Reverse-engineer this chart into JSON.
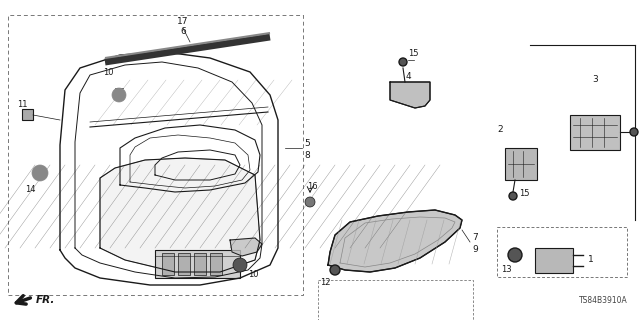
{
  "bg_color": "#ffffff",
  "line_color": "#1a1a1a",
  "dashed_color": "#777777",
  "fig_width": 6.4,
  "fig_height": 3.2,
  "dpi": 100,
  "diagram_code": "TS84B3910A"
}
